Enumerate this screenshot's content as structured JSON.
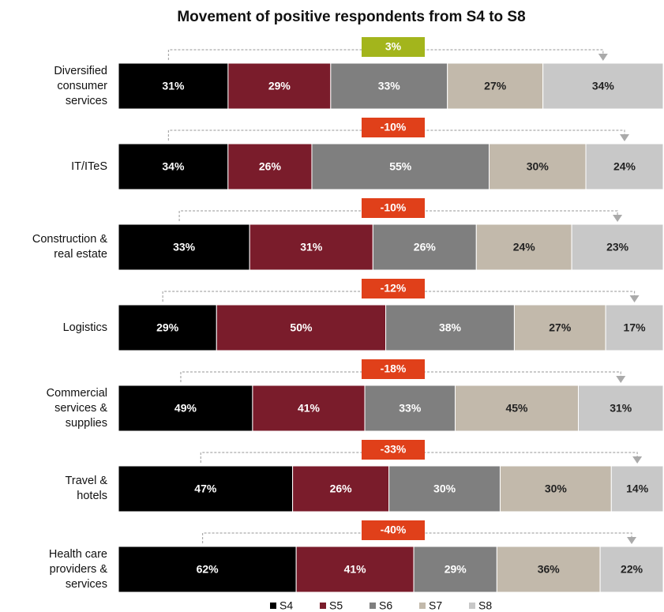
{
  "chart_data": {
    "type": "bar",
    "orientation": "horizontal",
    "stacked": true,
    "title": "Movement of positive respondents from S4 to S8",
    "categories": [
      "Diversified\nconsumer\nservices",
      "IT/ITeS",
      "Construction &\nreal estate",
      "Logistics",
      "Commercial\nservices &\nsupplies",
      "Travel &\nhotels",
      "Health care\nproviders &\nservices"
    ],
    "series": [
      {
        "name": "S4",
        "color": "#000000",
        "text_color": "#ffffff",
        "values": [
          31,
          34,
          33,
          29,
          49,
          47,
          62
        ],
        "value_labels": [
          "31%",
          "34%",
          "33%",
          "29%",
          "49%",
          "47%",
          "62%"
        ]
      },
      {
        "name": "S5",
        "color": "#7a1c2b",
        "text_color": "#ffffff",
        "values": [
          29,
          26,
          31,
          50,
          41,
          26,
          41
        ],
        "value_labels": [
          "29%",
          "26%",
          "31%",
          "50%",
          "41%",
          "26%",
          "41%"
        ]
      },
      {
        "name": "S6",
        "color": "#7f7f7f",
        "text_color": "#ffffff",
        "values": [
          33,
          55,
          26,
          38,
          33,
          30,
          29
        ],
        "value_labels": [
          "33%",
          "55%",
          "26%",
          "38%",
          "33%",
          "30%",
          "29%"
        ]
      },
      {
        "name": "S7",
        "color": "#c2b9ab",
        "text_color": "#222222",
        "values": [
          27,
          30,
          24,
          27,
          45,
          30,
          36
        ],
        "value_labels": [
          "27%",
          "30%",
          "24%",
          "27%",
          "45%",
          "30%",
          "36%"
        ]
      },
      {
        "name": "S8",
        "color": "#c8c8c8",
        "text_color": "#222222",
        "values": [
          34,
          24,
          23,
          17,
          31,
          14,
          22
        ],
        "value_labels": [
          "34%",
          "24%",
          "23%",
          "17%",
          "31%",
          "14%",
          "22%"
        ]
      }
    ],
    "annotations": {
      "values": [
        3,
        -10,
        -10,
        -12,
        -18,
        -33,
        -40
      ],
      "labels": [
        "3%",
        "-10%",
        "-10%",
        "-12%",
        "-18%",
        "-33%",
        "-40%"
      ],
      "colors": [
        "#a3b51c",
        "#e0401a",
        "#e0401a",
        "#e0401a",
        "#e0401a",
        "#e0401a",
        "#e0401a"
      ]
    },
    "legend": "bottom"
  }
}
